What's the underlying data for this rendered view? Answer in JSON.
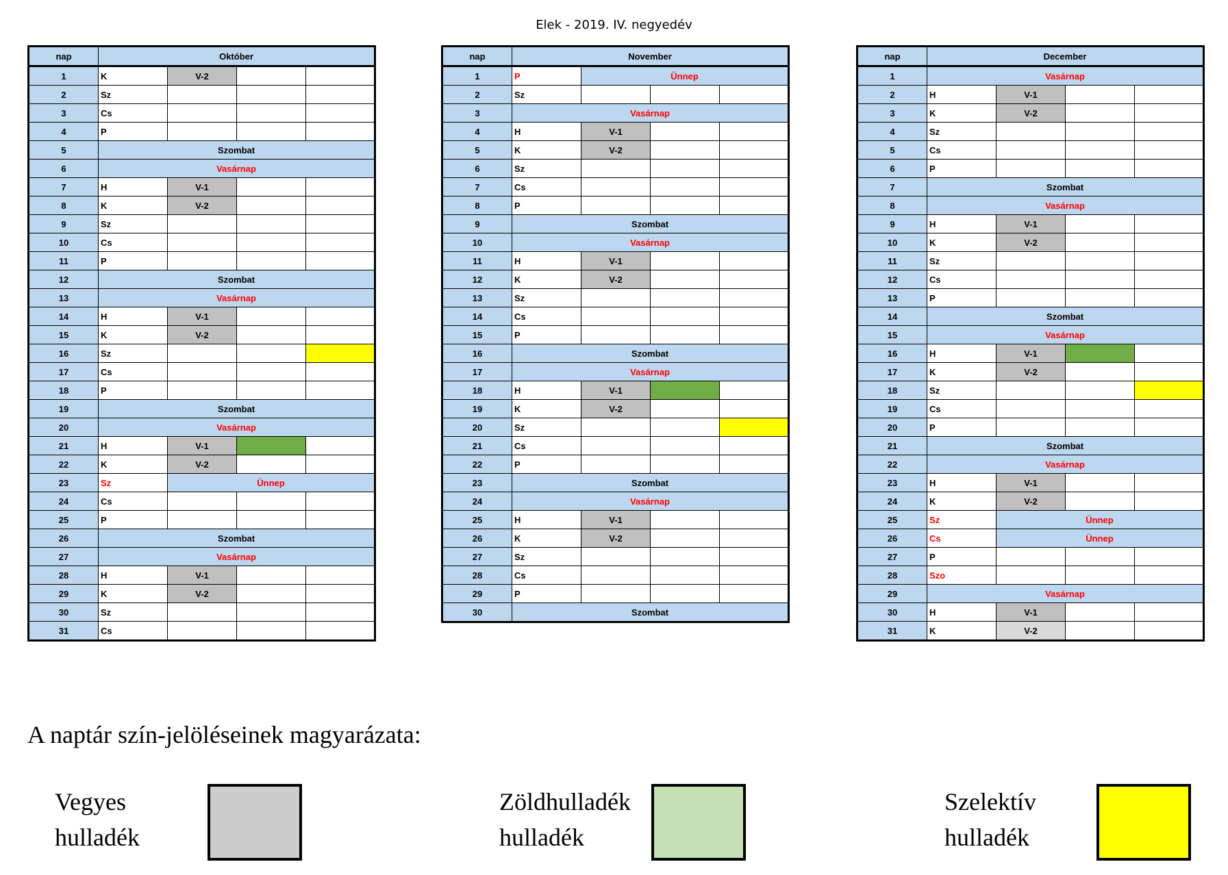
{
  "title": "Elek - 2019. IV. negyedév",
  "colors": {
    "header_blue": "#bdd7ee",
    "vegyes_gray": "#c0c0c0",
    "light_gray": "#d9d9d9",
    "green": "#70ad47",
    "yellow": "#ffff00",
    "red": "#ff0000"
  },
  "months": [
    {
      "nap_label": "nap",
      "name": "Október",
      "rows": [
        {
          "n": "1",
          "d": "K",
          "cells": [
            {
              "t": "V-2",
              "c": "gray"
            },
            {},
            {}
          ]
        },
        {
          "n": "2",
          "d": "Sz",
          "cells": [
            {},
            {},
            {}
          ]
        },
        {
          "n": "3",
          "d": "Cs",
          "cells": [
            {},
            {},
            {}
          ]
        },
        {
          "n": "4",
          "d": "P",
          "cells": [
            {},
            {},
            {}
          ]
        },
        {
          "n": "5",
          "banner": "Szombat"
        },
        {
          "n": "6",
          "banner": "Vasárnap",
          "red": true
        },
        {
          "n": "7",
          "d": "H",
          "cells": [
            {
              "t": "V-1",
              "c": "gray"
            },
            {},
            {}
          ]
        },
        {
          "n": "8",
          "d": "K",
          "cells": [
            {
              "t": "V-2",
              "c": "gray"
            },
            {},
            {}
          ]
        },
        {
          "n": "9",
          "d": "Sz",
          "cells": [
            {},
            {},
            {}
          ]
        },
        {
          "n": "10",
          "d": "Cs",
          "cells": [
            {},
            {},
            {}
          ]
        },
        {
          "n": "11",
          "d": "P",
          "cells": [
            {},
            {},
            {}
          ]
        },
        {
          "n": "12",
          "banner": "Szombat"
        },
        {
          "n": "13",
          "banner": "Vasárnap",
          "red": true
        },
        {
          "n": "14",
          "d": "H",
          "cells": [
            {
              "t": "V-1",
              "c": "gray"
            },
            {},
            {}
          ]
        },
        {
          "n": "15",
          "d": "K",
          "cells": [
            {
              "t": "V-2",
              "c": "gray"
            },
            {},
            {}
          ]
        },
        {
          "n": "16",
          "d": "Sz",
          "cells": [
            {},
            {},
            {
              "c": "yellow"
            }
          ]
        },
        {
          "n": "17",
          "d": "Cs",
          "cells": [
            {},
            {},
            {}
          ]
        },
        {
          "n": "18",
          "d": "P",
          "cells": [
            {},
            {},
            {}
          ]
        },
        {
          "n": "19",
          "banner": "Szombat"
        },
        {
          "n": "20",
          "banner": "Vasárnap",
          "red": true
        },
        {
          "n": "21",
          "d": "H",
          "cells": [
            {
              "t": "V-1",
              "c": "gray"
            },
            {
              "c": "green"
            },
            {}
          ]
        },
        {
          "n": "22",
          "d": "K",
          "cells": [
            {
              "t": "V-2",
              "c": "gray"
            },
            {},
            {}
          ]
        },
        {
          "n": "23",
          "d": "Sz",
          "dRed": true,
          "holiday": "Ünnep"
        },
        {
          "n": "24",
          "d": "Cs",
          "cells": [
            {},
            {},
            {}
          ]
        },
        {
          "n": "25",
          "d": "P",
          "cells": [
            {},
            {},
            {}
          ]
        },
        {
          "n": "26",
          "banner": "Szombat"
        },
        {
          "n": "27",
          "banner": "Vasárnap",
          "red": true
        },
        {
          "n": "28",
          "d": "H",
          "cells": [
            {
              "t": "V-1",
              "c": "gray"
            },
            {},
            {}
          ]
        },
        {
          "n": "29",
          "d": "K",
          "cells": [
            {
              "t": "V-2",
              "c": "gray"
            },
            {},
            {}
          ]
        },
        {
          "n": "30",
          "d": "Sz",
          "cells": [
            {},
            {},
            {}
          ]
        },
        {
          "n": "31",
          "d": "Cs",
          "cells": [
            {},
            {},
            {}
          ]
        }
      ]
    },
    {
      "nap_label": "nap",
      "name": "November",
      "rows": [
        {
          "n": "1",
          "d": "P",
          "dRed": true,
          "holiday": "Ünnep"
        },
        {
          "n": "2",
          "d": "Sz",
          "cells": [
            {},
            {},
            {}
          ]
        },
        {
          "n": "3",
          "banner": "Vasárnap",
          "red": true
        },
        {
          "n": "4",
          "d": "H",
          "cells": [
            {
              "t": "V-1",
              "c": "gray"
            },
            {},
            {}
          ]
        },
        {
          "n": "5",
          "d": "K",
          "cells": [
            {
              "t": "V-2",
              "c": "gray"
            },
            {},
            {}
          ]
        },
        {
          "n": "6",
          "d": "Sz",
          "cells": [
            {},
            {},
            {}
          ]
        },
        {
          "n": "7",
          "d": "Cs",
          "cells": [
            {},
            {},
            {}
          ]
        },
        {
          "n": "8",
          "d": "P",
          "cells": [
            {},
            {},
            {}
          ]
        },
        {
          "n": "9",
          "banner": "Szombat"
        },
        {
          "n": "10",
          "banner": "Vasárnap",
          "red": true
        },
        {
          "n": "11",
          "d": "H",
          "cells": [
            {
              "t": "V-1",
              "c": "gray"
            },
            {},
            {}
          ]
        },
        {
          "n": "12",
          "d": "K",
          "cells": [
            {
              "t": "V-2",
              "c": "gray"
            },
            {},
            {}
          ]
        },
        {
          "n": "13",
          "d": "Sz",
          "cells": [
            {},
            {},
            {}
          ]
        },
        {
          "n": "14",
          "d": "Cs",
          "cells": [
            {},
            {},
            {}
          ]
        },
        {
          "n": "15",
          "d": "P",
          "cells": [
            {},
            {},
            {}
          ]
        },
        {
          "n": "16",
          "banner": "Szombat"
        },
        {
          "n": "17",
          "banner": "Vasárnap",
          "red": true
        },
        {
          "n": "18",
          "d": "H",
          "cells": [
            {
              "t": "V-1",
              "c": "gray"
            },
            {
              "c": "green"
            },
            {}
          ]
        },
        {
          "n": "19",
          "d": "K",
          "cells": [
            {
              "t": "V-2",
              "c": "gray"
            },
            {},
            {}
          ]
        },
        {
          "n": "20",
          "d": "Sz",
          "cells": [
            {},
            {},
            {
              "c": "yellow"
            }
          ]
        },
        {
          "n": "21",
          "d": "Cs",
          "cells": [
            {},
            {},
            {}
          ]
        },
        {
          "n": "22",
          "d": "P",
          "cells": [
            {},
            {},
            {}
          ]
        },
        {
          "n": "23",
          "banner": "Szombat"
        },
        {
          "n": "24",
          "banner": "Vasárnap",
          "red": true
        },
        {
          "n": "25",
          "d": "H",
          "cells": [
            {
              "t": "V-1",
              "c": "gray"
            },
            {},
            {}
          ]
        },
        {
          "n": "26",
          "d": "K",
          "cells": [
            {
              "t": "V-2",
              "c": "gray"
            },
            {},
            {}
          ]
        },
        {
          "n": "27",
          "d": "Sz",
          "cells": [
            {},
            {},
            {}
          ]
        },
        {
          "n": "28",
          "d": "Cs",
          "cells": [
            {},
            {},
            {}
          ]
        },
        {
          "n": "29",
          "d": "P",
          "cells": [
            {},
            {},
            {}
          ]
        },
        {
          "n": "30",
          "banner": "Szombat"
        }
      ]
    },
    {
      "nap_label": "nap",
      "name": "December",
      "rows": [
        {
          "n": "1",
          "banner": "Vasárnap",
          "red": true
        },
        {
          "n": "2",
          "d": "H",
          "cells": [
            {
              "t": "V-1",
              "c": "gray"
            },
            {},
            {}
          ]
        },
        {
          "n": "3",
          "d": "K",
          "cells": [
            {
              "t": "V-2",
              "c": "gray"
            },
            {},
            {}
          ]
        },
        {
          "n": "4",
          "d": "Sz",
          "cells": [
            {},
            {},
            {}
          ]
        },
        {
          "n": "5",
          "d": "Cs",
          "cells": [
            {},
            {},
            {}
          ]
        },
        {
          "n": "6",
          "d": "P",
          "cells": [
            {},
            {},
            {}
          ]
        },
        {
          "n": "7",
          "banner": "Szombat"
        },
        {
          "n": "8",
          "banner": "Vasárnap",
          "red": true
        },
        {
          "n": "9",
          "d": "H",
          "cells": [
            {
              "t": "V-1",
              "c": "gray"
            },
            {},
            {}
          ]
        },
        {
          "n": "10",
          "d": "K",
          "cells": [
            {
              "t": "V-2",
              "c": "gray"
            },
            {},
            {}
          ]
        },
        {
          "n": "11",
          "d": "Sz",
          "cells": [
            {},
            {},
            {}
          ]
        },
        {
          "n": "12",
          "d": "Cs",
          "cells": [
            {},
            {},
            {}
          ]
        },
        {
          "n": "13",
          "d": "P",
          "cells": [
            {},
            {},
            {}
          ]
        },
        {
          "n": "14",
          "banner": "Szombat"
        },
        {
          "n": "15",
          "banner": "Vasárnap",
          "red": true
        },
        {
          "n": "16",
          "d": "H",
          "cells": [
            {
              "t": "V-1",
              "c": "gray"
            },
            {
              "c": "green"
            },
            {}
          ]
        },
        {
          "n": "17",
          "d": "K",
          "cells": [
            {
              "t": "V-2",
              "c": "gray"
            },
            {},
            {}
          ]
        },
        {
          "n": "18",
          "d": "Sz",
          "cells": [
            {},
            {},
            {
              "c": "yellow"
            }
          ]
        },
        {
          "n": "19",
          "d": "Cs",
          "cells": [
            {},
            {},
            {}
          ]
        },
        {
          "n": "20",
          "d": "P",
          "cells": [
            {},
            {},
            {}
          ]
        },
        {
          "n": "21",
          "banner": "Szombat"
        },
        {
          "n": "22",
          "banner": "Vasárnap",
          "red": true
        },
        {
          "n": "23",
          "d": "H",
          "cells": [
            {
              "t": "V-1",
              "c": "gray"
            },
            {},
            {}
          ]
        },
        {
          "n": "24",
          "d": "K",
          "cells": [
            {
              "t": "V-2",
              "c": "gray"
            },
            {},
            {}
          ]
        },
        {
          "n": "25",
          "d": "Sz",
          "dRed": true,
          "holiday": "Ünnep"
        },
        {
          "n": "26",
          "d": "Cs",
          "dRed": true,
          "holiday": "Ünnep"
        },
        {
          "n": "27",
          "d": "P",
          "cells": [
            {},
            {},
            {}
          ]
        },
        {
          "n": "28",
          "d": "Szo",
          "dRed": true,
          "cells": [
            {},
            {},
            {}
          ]
        },
        {
          "n": "29",
          "banner": "Vasárnap",
          "red": true
        },
        {
          "n": "30",
          "d": "H",
          "cells": [
            {
              "t": "V-1",
              "c": "gray"
            },
            {},
            {}
          ]
        },
        {
          "n": "31",
          "d": "K",
          "cells": [
            {
              "t": "V-2",
              "c": "lightgray"
            },
            {},
            {}
          ]
        }
      ]
    }
  ],
  "legend": {
    "title": "A naptár szín-jelöléseinek magyarázata:",
    "items": [
      {
        "line1": "Vegyes",
        "line2": "hulladék",
        "color": "#cccccc"
      },
      {
        "line1": "Zöldhulladék",
        "line2": "hulladék",
        "color": "#c5e0b4"
      },
      {
        "line1": "Szelektív",
        "line2": "hulladék",
        "color": "#ffff00"
      }
    ]
  }
}
